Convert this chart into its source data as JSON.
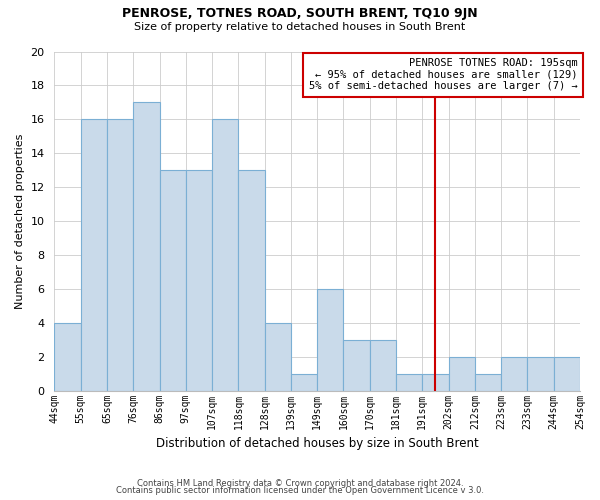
{
  "title": "PENROSE, TOTNES ROAD, SOUTH BRENT, TQ10 9JN",
  "subtitle": "Size of property relative to detached houses in South Brent",
  "xlabel": "Distribution of detached houses by size in South Brent",
  "ylabel": "Number of detached properties",
  "bar_labels": [
    "44sqm",
    "55sqm",
    "65sqm",
    "76sqm",
    "86sqm",
    "97sqm",
    "107sqm",
    "118sqm",
    "128sqm",
    "139sqm",
    "149sqm",
    "160sqm",
    "170sqm",
    "181sqm",
    "191sqm",
    "202sqm",
    "212sqm",
    "223sqm",
    "233sqm",
    "244sqm",
    "254sqm"
  ],
  "bar_heights": [
    4,
    16,
    16,
    17,
    13,
    13,
    16,
    13,
    4,
    1,
    6,
    3,
    3,
    1,
    1,
    2,
    1,
    2,
    2,
    2
  ],
  "bar_color": "#c9daea",
  "bar_edge_color": "#7bafd4",
  "ylim": [
    0,
    20
  ],
  "yticks": [
    0,
    2,
    4,
    6,
    8,
    10,
    12,
    14,
    16,
    18,
    20
  ],
  "vline_color": "#cc0000",
  "vline_x": 14.5,
  "annotation_title": "PENROSE TOTNES ROAD: 195sqm",
  "annotation_line1": "← 95% of detached houses are smaller (129)",
  "annotation_line2": "5% of semi-detached houses are larger (7) →",
  "annotation_box_color": "#ffffff",
  "annotation_box_edge": "#cc0000",
  "footer_line1": "Contains HM Land Registry data © Crown copyright and database right 2024.",
  "footer_line2": "Contains public sector information licensed under the Open Government Licence v 3.0.",
  "background_color": "#ffffff",
  "grid_color": "#cccccc",
  "title_fontsize": 9,
  "subtitle_fontsize": 8,
  "ylabel_fontsize": 8,
  "xlabel_fontsize": 8.5
}
